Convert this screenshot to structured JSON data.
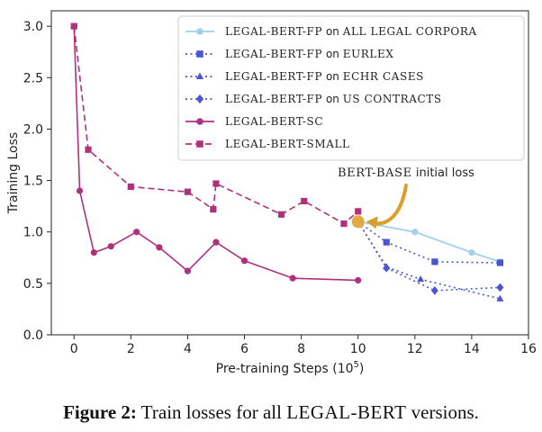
{
  "chart_data": {
    "type": "line",
    "xlabel": "Pre-training Steps (10",
    "xlabel_exp": "5",
    "xlabel_close": ")",
    "ylabel": "Training Loss",
    "xlim": [
      -0.8,
      16
    ],
    "ylim": [
      0.0,
      3.15
    ],
    "xticks": [
      0,
      2,
      4,
      6,
      8,
      10,
      12,
      14,
      16
    ],
    "yticks": [
      0.0,
      0.5,
      1.0,
      1.5,
      2.0,
      2.5,
      3.0
    ],
    "xtick_labels": [
      "0",
      "2",
      "4",
      "6",
      "8",
      "10",
      "12",
      "14",
      "16"
    ],
    "ytick_labels": [
      "0.0",
      "0.5",
      "1.0",
      "1.5",
      "2.0",
      "2.5",
      "3.0"
    ],
    "grid": false,
    "legend_position": "top-right",
    "series": [
      {
        "name": "LEGAL-BERT-FP",
        "suffix_on": "on",
        "suffix_corpus": "ALL LEGAL CORPORA",
        "color": "#9fd0ee",
        "linestyle": "solid",
        "marker": "circle",
        "x": [
          10,
          12,
          14,
          15
        ],
        "y": [
          1.1,
          1.0,
          0.8,
          0.71
        ]
      },
      {
        "name": "LEGAL-BERT-FP",
        "suffix_on": "on",
        "suffix_corpus": "EURLEX",
        "color": "#4a55d0",
        "linestyle": "dotted",
        "marker": "square",
        "x": [
          10,
          11,
          12.7,
          15
        ],
        "y": [
          1.1,
          0.9,
          0.71,
          0.7
        ]
      },
      {
        "name": "LEGAL-BERT-FP",
        "suffix_on": "on",
        "suffix_corpus": "ECHR CASES",
        "color": "#4a55d0",
        "linestyle": "dotted",
        "marker": "triangle",
        "x": [
          10,
          11,
          12.2,
          15
        ],
        "y": [
          1.1,
          0.66,
          0.54,
          0.35
        ]
      },
      {
        "name": "LEGAL-BERT-FP",
        "suffix_on": "on",
        "suffix_corpus": "US CONTRACTS",
        "color": "#4a55d0",
        "linestyle": "dotted",
        "marker": "diamond",
        "x": [
          10,
          11,
          12.7,
          15
        ],
        "y": [
          1.1,
          0.65,
          0.43,
          0.46
        ]
      },
      {
        "name": "LEGAL-BERT-SC",
        "suffix_on": "",
        "suffix_corpus": "",
        "color": "#b0307e",
        "linestyle": "solid",
        "marker": "circle",
        "x": [
          0,
          0.2,
          0.7,
          1.3,
          2.2,
          3.0,
          4.0,
          5.0,
          6.0,
          7.7,
          10.0
        ],
        "y": [
          3.0,
          1.4,
          0.8,
          0.86,
          1.0,
          0.85,
          0.62,
          0.9,
          0.72,
          0.55,
          0.53
        ]
      },
      {
        "name": "LEGAL-BERT-SMALL",
        "suffix_on": "",
        "suffix_corpus": "",
        "color": "#b0307e",
        "linestyle": "dashed",
        "marker": "square",
        "x": [
          0,
          0.5,
          2.0,
          4.0,
          4.9,
          5.0,
          7.3,
          8.1,
          9.5,
          10.0
        ],
        "y": [
          3.0,
          1.8,
          1.44,
          1.39,
          1.22,
          1.47,
          1.17,
          1.3,
          1.08,
          1.2
        ]
      }
    ],
    "annotation": {
      "text_sc": "BERT-BASE",
      "text_rest": " initial loss",
      "point_x": 10,
      "point_y": 1.1,
      "point_color": "#e3aa3c",
      "arrow_color": "#d89f2c"
    }
  },
  "caption": {
    "figure_label": "Figure 2:",
    "text_before": " Train losses for all ",
    "text_sc": "LEGAL-BERT",
    "text_after": " versions."
  }
}
